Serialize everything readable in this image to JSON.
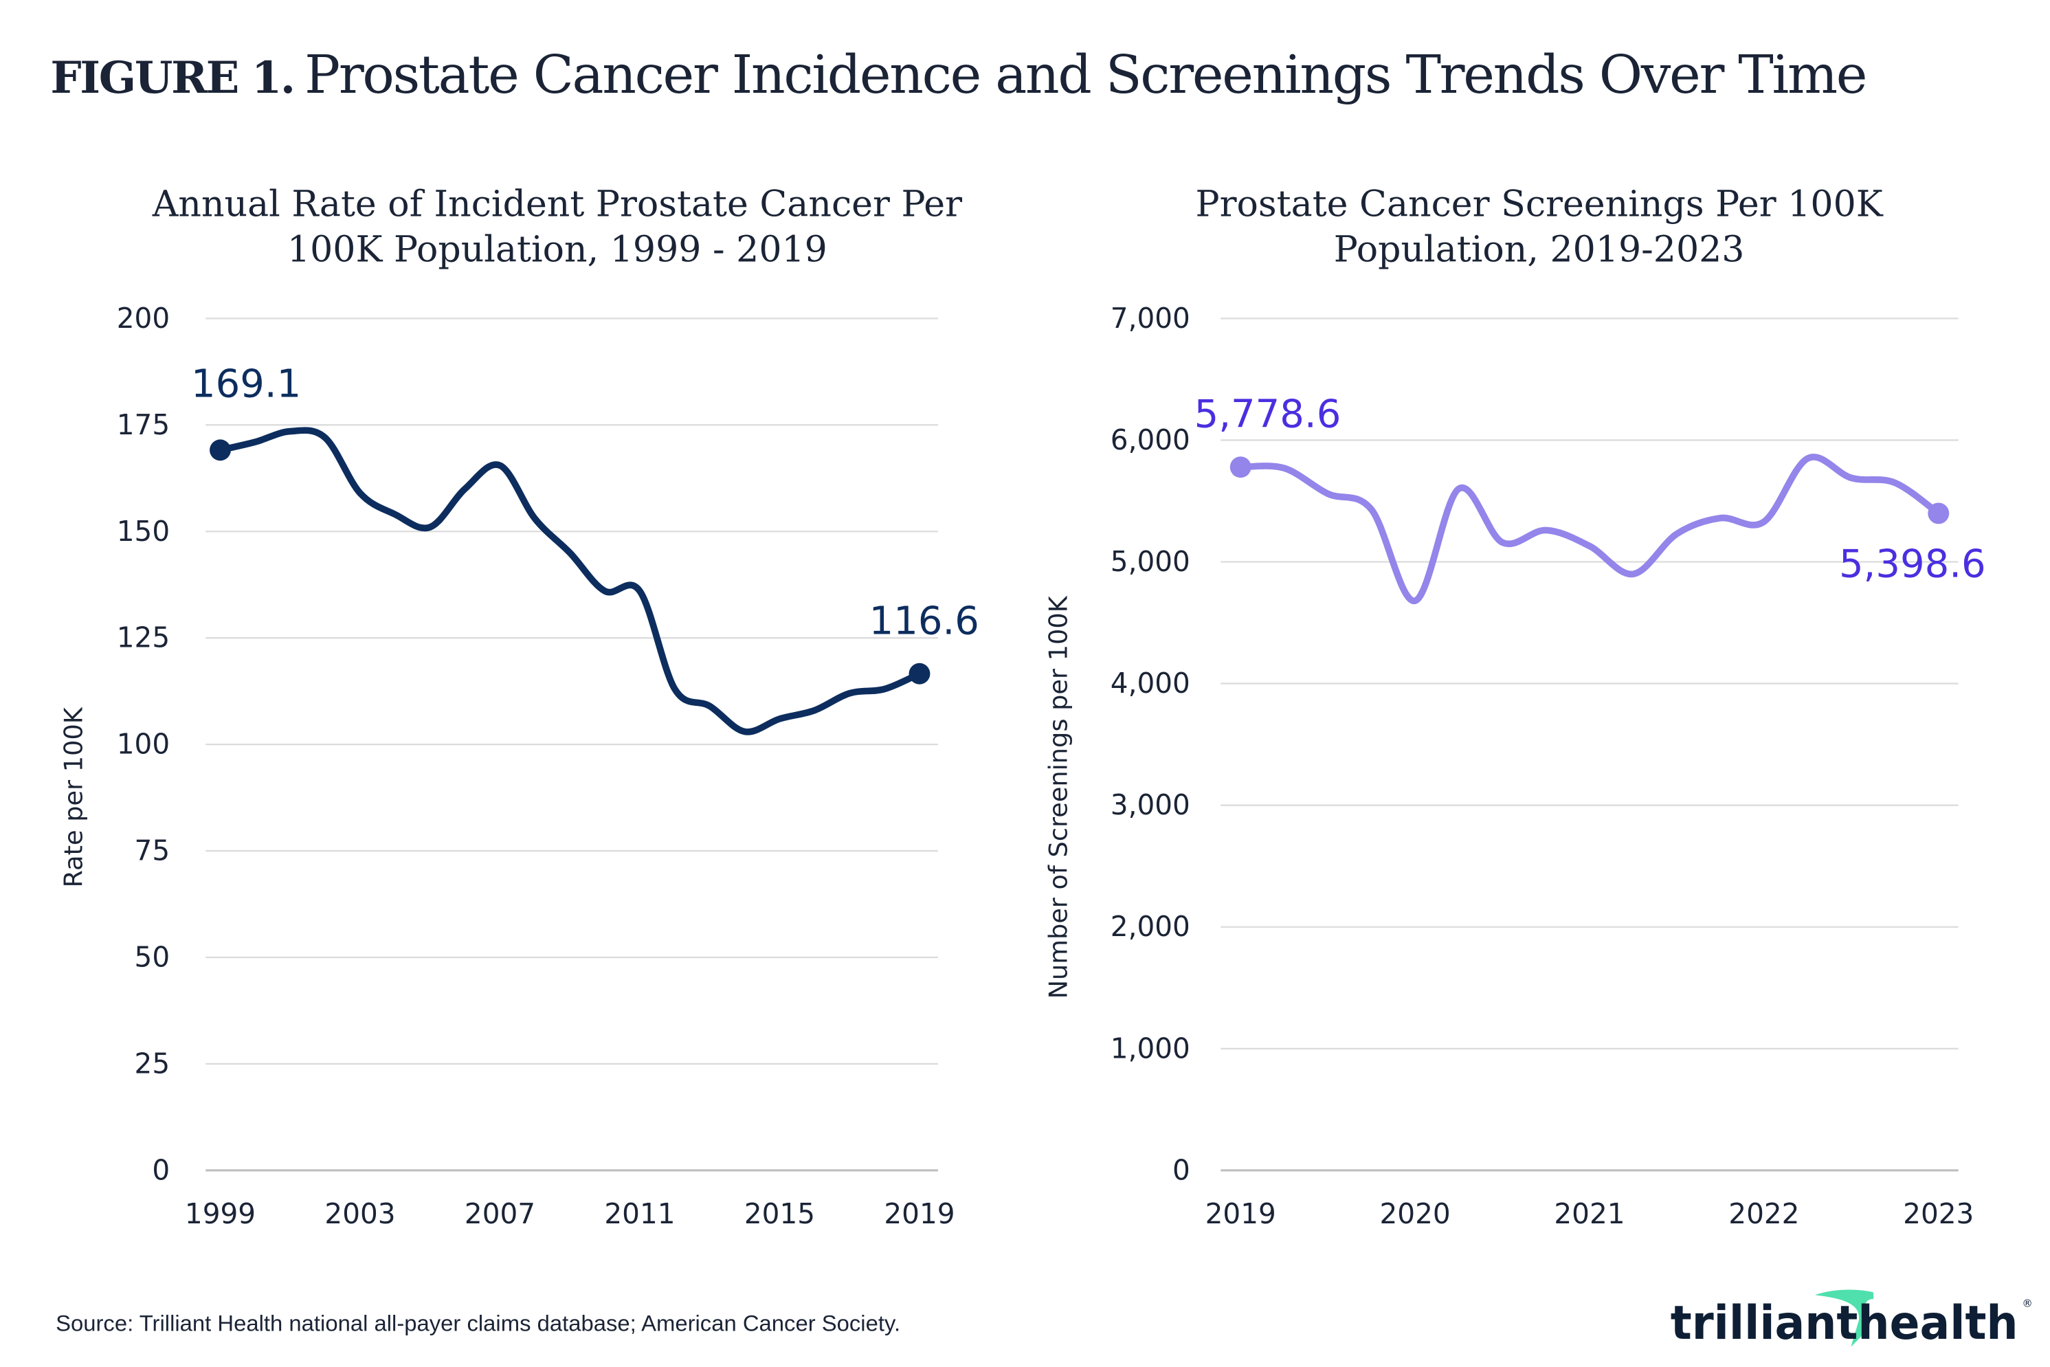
{
  "figure": {
    "label": "FIGURE 1.",
    "title": "Prostate Cancer Incidence and Screenings Trends Over Time"
  },
  "source": "Source: Trilliant Health national all-payer claims database; American Cancer Society.",
  "logo": {
    "text": "trilliant health",
    "accent_color": "#4fe0ad",
    "text_color": "#0e1f35"
  },
  "chart_data": [
    {
      "type": "line",
      "title": "Annual Rate of Incident Prostate Cancer Per 100K Population, 1999 - 2019",
      "title_lines": [
        "Annual Rate of Incident Prostate Cancer Per",
        "100K Population, 1999 - 2019"
      ],
      "xlabel": "",
      "ylabel": "Rate per 100K",
      "x": [
        1999,
        2000,
        2001,
        2002,
        2003,
        2004,
        2005,
        2006,
        2007,
        2008,
        2009,
        2010,
        2011,
        2012,
        2013,
        2014,
        2015,
        2016,
        2017,
        2018,
        2019
      ],
      "values": [
        169.1,
        171,
        173.5,
        172,
        159,
        154,
        151,
        160,
        165.5,
        153,
        145,
        136,
        136,
        113,
        109,
        103,
        106,
        108,
        112,
        113,
        116.6
      ],
      "xticks": [
        "1999",
        "2003",
        "2007",
        "2011",
        "2015",
        "2019"
      ],
      "xtick_values": [
        1999,
        2003,
        2007,
        2011,
        2015,
        2019
      ],
      "yticks": [
        "0",
        "25",
        "50",
        "75",
        "100",
        "125",
        "150",
        "175",
        "200"
      ],
      "ylim": [
        0,
        200
      ],
      "xlim": [
        1999,
        2019
      ],
      "grid": true,
      "color": "#0c2d5e",
      "label_color": "#0c2d5e",
      "data_labels": [
        {
          "text": "169.1",
          "x": 1999,
          "y": 169.1
        },
        {
          "text": "116.6",
          "x": 2019,
          "y": 116.6
        }
      ]
    },
    {
      "type": "line",
      "title": "Prostate Cancer Screenings Per 100K Population, 2019-2023",
      "title_lines": [
        "Prostate Cancer Screenings Per 100K",
        "Population, 2019-2023"
      ],
      "xlabel": "",
      "ylabel": "Number of Screenings per 100K",
      "x": [
        2019,
        2019.25,
        2019.5,
        2019.75,
        2020,
        2020.25,
        2020.5,
        2020.75,
        2021,
        2021.25,
        2021.5,
        2021.75,
        2022,
        2022.25,
        2022.5,
        2022.75,
        2023
      ],
      "values": [
        5778.6,
        5770,
        5560,
        5430,
        4680,
        5600,
        5160,
        5260,
        5130,
        4900,
        5230,
        5360,
        5330,
        5850,
        5690,
        5650,
        5398.6
      ],
      "xticks": [
        "2019",
        "2020",
        "2021",
        "2022",
        "2023"
      ],
      "xtick_values": [
        2019,
        2020,
        2021,
        2022,
        2023
      ],
      "yticks": [
        "0",
        "1,000",
        "2,000",
        "3,000",
        "4,000",
        "5,000",
        "6,000",
        "7,000"
      ],
      "ylim": [
        0,
        7000
      ],
      "xlim": [
        2019,
        2023
      ],
      "grid": true,
      "color": "#9385ea",
      "label_color": "#4a2fe0",
      "data_labels": [
        {
          "text": "5,778.6",
          "x": 2019,
          "y": 5778.6
        },
        {
          "text": "5,398.6",
          "x": 2023,
          "y": 5398.6
        }
      ]
    }
  ]
}
